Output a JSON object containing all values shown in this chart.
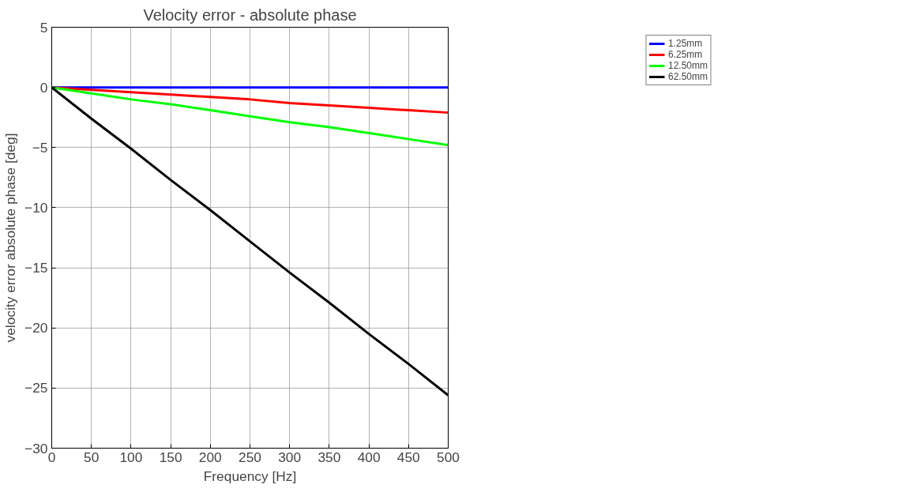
{
  "chart_data": {
    "type": "line",
    "title": "Velocity error - absolute phase",
    "xlabel": "Frequency [Hz]",
    "ylabel": "velocity error absolute phase [deg]",
    "x": [
      0,
      50,
      100,
      150,
      200,
      250,
      300,
      350,
      400,
      450,
      500
    ],
    "series": [
      {
        "name": "1.25mm",
        "color": "#0000ff",
        "values": [
          0,
          0,
          0,
          0,
          0,
          0,
          0,
          0,
          0,
          0,
          0
        ]
      },
      {
        "name": "6.25mm",
        "color": "#ff0000",
        "values": [
          0,
          -0.2,
          -0.4,
          -0.6,
          -0.8,
          -1.0,
          -1.3,
          -1.5,
          -1.7,
          -1.9,
          -2.1
        ]
      },
      {
        "name": "12.50mm",
        "color": "#00ff00",
        "values": [
          0,
          -0.5,
          -1.0,
          -1.4,
          -1.9,
          -2.4,
          -2.9,
          -3.3,
          -3.8,
          -4.3,
          -4.8
        ]
      },
      {
        "name": "62.50mm",
        "color": "#000000",
        "values": [
          0,
          -2.6,
          -5.1,
          -7.7,
          -10.2,
          -12.8,
          -15.4,
          -17.9,
          -20.5,
          -23.0,
          -25.6
        ]
      }
    ],
    "xlim": [
      0,
      500
    ],
    "ylim": [
      -30,
      5
    ],
    "xticks": [
      0,
      50,
      100,
      150,
      200,
      250,
      300,
      350,
      400,
      450,
      500
    ],
    "yticks": [
      -30,
      -25,
      -20,
      -15,
      -10,
      -5,
      0,
      5
    ],
    "grid": true,
    "legend": "top right",
    "line_style": "solid",
    "marker": "none"
  }
}
